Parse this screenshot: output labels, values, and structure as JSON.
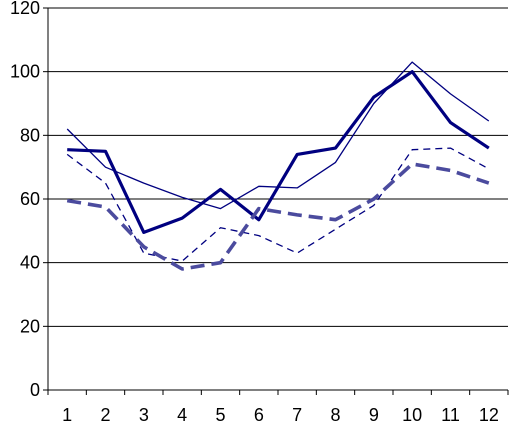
{
  "chart_data": {
    "type": "line",
    "title": "",
    "xlabel": "",
    "ylabel": "",
    "categories": [
      "1",
      "2",
      "3",
      "4",
      "5",
      "6",
      "7",
      "8",
      "9",
      "10",
      "11",
      "12"
    ],
    "ylim": [
      0,
      120
    ],
    "yticks": [
      0,
      20,
      40,
      60,
      80,
      100,
      120
    ],
    "grid": "horizontal",
    "legend": "none",
    "series": [
      {
        "values": [
          82,
          70,
          65,
          60.5,
          57,
          64,
          63.5,
          71.5,
          90,
          103,
          93,
          84.5
        ],
        "color": "#000080",
        "style": "thin-solid"
      },
      {
        "values": [
          75.5,
          75,
          49.5,
          54,
          63,
          53.5,
          74,
          76,
          92,
          100,
          84,
          76
        ],
        "color": "#000080",
        "style": "thick-solid"
      },
      {
        "values": [
          74,
          65,
          43,
          40.5,
          51,
          48.5,
          43,
          50.5,
          58,
          75.5,
          76,
          69.5
        ],
        "color": "#000080",
        "style": "thin-dashed"
      },
      {
        "values": [
          59.5,
          57.5,
          45,
          38,
          40,
          57,
          55,
          53.5,
          60,
          71,
          69,
          65
        ],
        "color": "#4B4B9E",
        "style": "thick-dashed"
      }
    ]
  }
}
